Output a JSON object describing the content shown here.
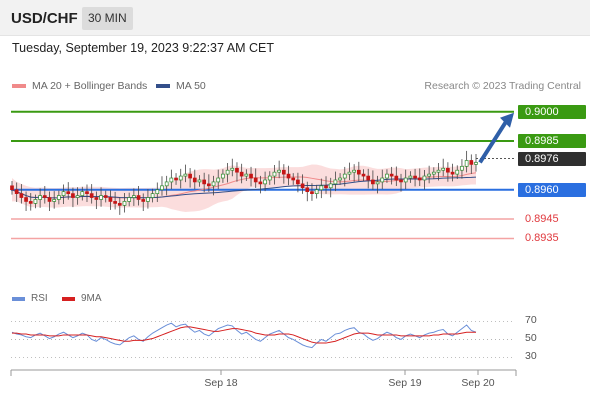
{
  "header": {
    "pair": "USD/CHF",
    "timeframe": "30 MIN"
  },
  "datetime": "Tuesday, September 19, 2023 9:22:37 AM CET",
  "legend": {
    "ma20_label": "MA 20 + Bollinger Bands",
    "ma50_label": "MA 50",
    "credit": "Research © 2023 Trading Central"
  },
  "rsi_legend": {
    "rsi_label": "RSI",
    "ma9_label": "9MA"
  },
  "colors": {
    "green": "#3a9a12",
    "blue": "#2a6fe0",
    "red": "#e0393e",
    "dark": "#2f2f2f",
    "band": "#fbd9d9",
    "ma50": "#334f8a",
    "ma20": "#f08a8a",
    "rsi": "#6a8fd8",
    "rsi_ma": "#d62020",
    "candle_up": "#2e8b2e",
    "candle_down": "#c51616"
  },
  "chart_data": {
    "type": "candlestick",
    "y_range": [
      0.8925,
      0.9006
    ],
    "levels": [
      {
        "value": 0.9,
        "label": "0.9000",
        "style": "green"
      },
      {
        "value": 0.8985,
        "label": "0.8985",
        "style": "green"
      },
      {
        "value": 0.8976,
        "label": "0.8976",
        "style": "dark"
      },
      {
        "value": 0.896,
        "label": "0.8960",
        "style": "blue"
      },
      {
        "value": 0.8945,
        "label": "0.8945",
        "style": "red"
      },
      {
        "value": 0.8935,
        "label": "0.8935",
        "style": "red"
      }
    ],
    "x_ticks": [
      "Sep 18",
      "Sep 19",
      "Sep 20"
    ],
    "close": [
      0.896,
      0.8958,
      0.8956,
      0.8954,
      0.8953,
      0.8955,
      0.8957,
      0.8956,
      0.8954,
      0.8955,
      0.8957,
      0.8959,
      0.8958,
      0.8956,
      0.8957,
      0.8959,
      0.8958,
      0.8956,
      0.8955,
      0.8957,
      0.8956,
      0.8954,
      0.8953,
      0.8952,
      0.8954,
      0.8956,
      0.8957,
      0.8955,
      0.8954,
      0.8956,
      0.8958,
      0.896,
      0.8962,
      0.8964,
      0.8966,
      0.8965,
      0.8967,
      0.8968,
      0.8966,
      0.8964,
      0.8965,
      0.8963,
      0.8962,
      0.8964,
      0.8966,
      0.8968,
      0.897,
      0.8971,
      0.8969,
      0.8967,
      0.8968,
      0.8966,
      0.8964,
      0.8963,
      0.8965,
      0.8967,
      0.8969,
      0.897,
      0.8968,
      0.8966,
      0.8965,
      0.8963,
      0.8961,
      0.8959,
      0.8958,
      0.896,
      0.8962,
      0.8961,
      0.8963,
      0.8965,
      0.8966,
      0.8968,
      0.8969,
      0.897,
      0.8968,
      0.8967,
      0.8965,
      0.8963,
      0.8964,
      0.8966,
      0.8968,
      0.8967,
      0.8965,
      0.8964,
      0.8966,
      0.8967,
      0.8966,
      0.8965,
      0.8967,
      0.8968,
      0.8969,
      0.897,
      0.8971,
      0.8969,
      0.8968,
      0.897,
      0.8972,
      0.8975,
      0.8973,
      0.8974
    ],
    "rsi": {
      "ticks": [
        70,
        50,
        30
      ],
      "y_range": [
        25,
        76
      ],
      "rsi": [
        58,
        56,
        55,
        53,
        52,
        55,
        57,
        54,
        51,
        53,
        56,
        58,
        55,
        52,
        54,
        57,
        55,
        50,
        48,
        52,
        50,
        47,
        45,
        44,
        48,
        52,
        54,
        50,
        48,
        53,
        57,
        60,
        63,
        66,
        68,
        64,
        66,
        67,
        62,
        58,
        60,
        56,
        54,
        58,
        62,
        64,
        66,
        65,
        60,
        56,
        58,
        54,
        50,
        48,
        52,
        56,
        58,
        60,
        56,
        52,
        50,
        47,
        44,
        42,
        41,
        46,
        50,
        48,
        52,
        56,
        57,
        60,
        62,
        63,
        58,
        56,
        52,
        49,
        51,
        55,
        58,
        56,
        52,
        50,
        54,
        56,
        54,
        52,
        55,
        57,
        58,
        60,
        61,
        56,
        54,
        58,
        62,
        66,
        60,
        58
      ],
      "ma9": [
        57,
        57,
        56,
        56,
        55,
        55,
        55,
        55,
        54,
        54,
        54,
        55,
        55,
        55,
        55,
        55,
        55,
        54,
        53,
        53,
        52,
        51,
        50,
        49,
        48,
        48,
        49,
        49,
        49,
        50,
        51,
        53,
        55,
        57,
        59,
        61,
        63,
        64,
        64,
        63,
        62,
        61,
        60,
        59,
        59,
        60,
        61,
        62,
        62,
        61,
        60,
        59,
        57,
        56,
        55,
        55,
        55,
        56,
        56,
        56,
        55,
        53,
        51,
        49,
        47,
        46,
        46,
        46,
        47,
        48,
        50,
        52,
        54,
        56,
        57,
        57,
        57,
        56,
        55,
        55,
        55,
        55,
        55,
        54,
        54,
        54,
        54,
        54,
        54,
        54,
        55,
        55,
        56,
        56,
        56,
        56,
        57,
        58,
        58,
        58
      ]
    }
  }
}
